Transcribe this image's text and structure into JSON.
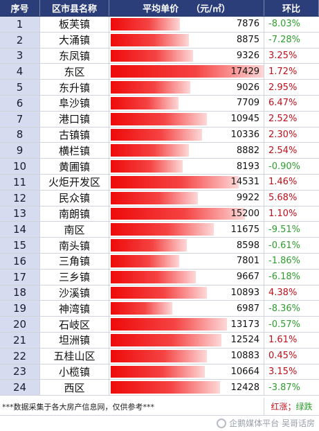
{
  "header": {
    "idx": "序号",
    "name": "区市县名称",
    "price": "平均单价",
    "unit": "（元/㎡）",
    "change": "环比"
  },
  "chart_data": {
    "type": "table",
    "max_value": 17429,
    "rows": [
      {
        "idx": "1",
        "name": "板芙镇",
        "price": 7876,
        "change": "-8.03%"
      },
      {
        "idx": "2",
        "name": "大涌镇",
        "price": 8875,
        "change": "-7.28%"
      },
      {
        "idx": "3",
        "name": "东凤镇",
        "price": 9326,
        "change": "3.25%"
      },
      {
        "idx": "4",
        "name": "东区",
        "price": 17429,
        "change": "1.72%"
      },
      {
        "idx": "5",
        "name": "东升镇",
        "price": 9026,
        "change": "2.95%"
      },
      {
        "idx": "6",
        "name": "阜沙镇",
        "price": 7709,
        "change": "6.47%"
      },
      {
        "idx": "7",
        "name": "港口镇",
        "price": 10945,
        "change": "2.52%"
      },
      {
        "idx": "8",
        "name": "古镇镇",
        "price": 10336,
        "change": "2.30%"
      },
      {
        "idx": "9",
        "name": "横栏镇",
        "price": 8882,
        "change": "2.54%"
      },
      {
        "idx": "10",
        "name": "黄圃镇",
        "price": 8193,
        "change": "-0.90%"
      },
      {
        "idx": "11",
        "name": "火炬开发区",
        "price": 14531,
        "change": "1.46%"
      },
      {
        "idx": "12",
        "name": "民众镇",
        "price": 9922,
        "change": "5.68%"
      },
      {
        "idx": "13",
        "name": "南朗镇",
        "price": 15200,
        "change": "1.10%"
      },
      {
        "idx": "14",
        "name": "南区",
        "price": 11675,
        "change": "-9.51%"
      },
      {
        "idx": "15",
        "name": "南头镇",
        "price": 8598,
        "change": "-0.61%"
      },
      {
        "idx": "16",
        "name": "三角镇",
        "price": 7801,
        "change": "-1.86%"
      },
      {
        "idx": "17",
        "name": "三乡镇",
        "price": 9667,
        "change": "-6.18%"
      },
      {
        "idx": "18",
        "name": "沙溪镇",
        "price": 10893,
        "change": "4.38%"
      },
      {
        "idx": "19",
        "name": "神湾镇",
        "price": 6987,
        "change": "-8.36%"
      },
      {
        "idx": "20",
        "name": "石岐区",
        "price": 13173,
        "change": "-0.57%"
      },
      {
        "idx": "21",
        "name": "坦洲镇",
        "price": 12524,
        "change": "1.61%"
      },
      {
        "idx": "22",
        "name": "五桂山区",
        "price": 10883,
        "change": "0.45%"
      },
      {
        "idx": "23",
        "name": "小榄镇",
        "price": 10664,
        "change": "3.15%"
      },
      {
        "idx": "24",
        "name": "西区",
        "price": 12428,
        "change": "-3.87%"
      }
    ]
  },
  "footer": {
    "note": "***数据采集于各大房产信息网，仅供参考***",
    "legend_red": "红涨",
    "legend_sep": "；",
    "legend_green": "绿跌"
  },
  "watermark": "企鹅媒体平台 吴哥话房",
  "colors": {
    "header_bg": "#2c3e7a",
    "index_bg": "#d7dbef",
    "bar_red": "#ee0a0a",
    "rise": "#c0101a",
    "fall": "#2e9e2e"
  }
}
